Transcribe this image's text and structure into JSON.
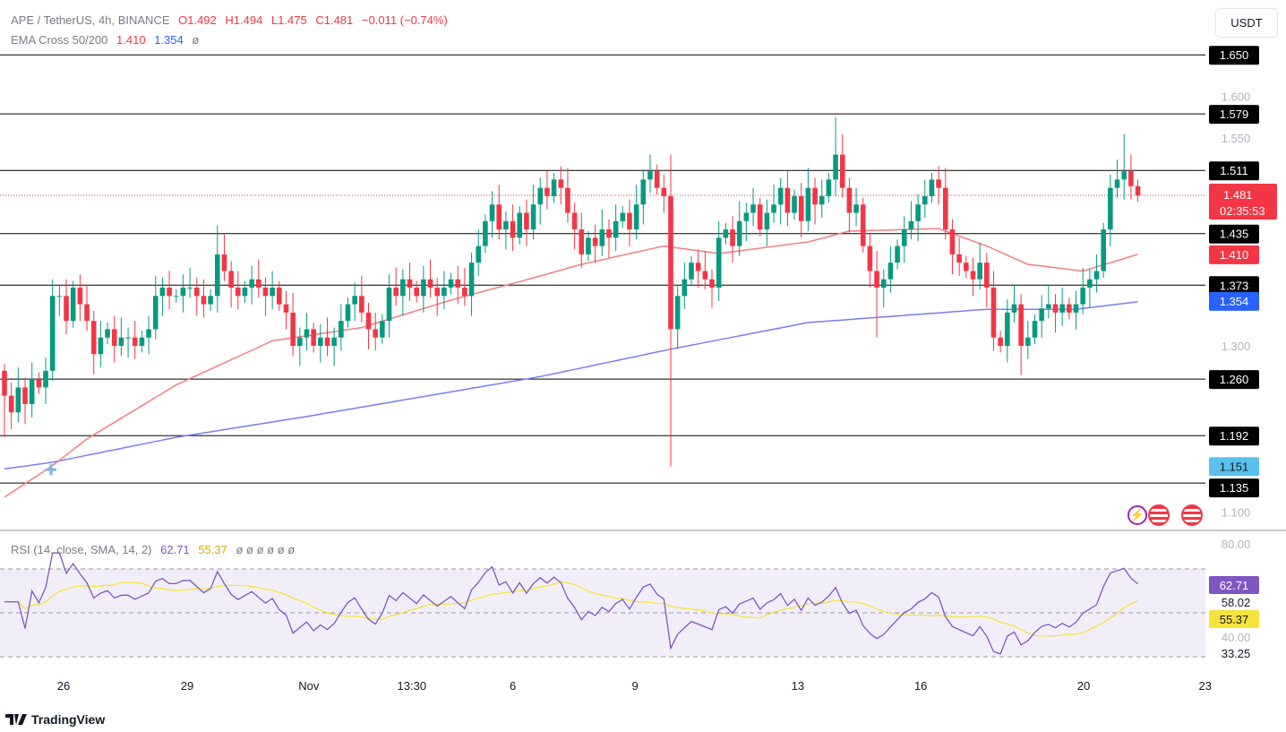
{
  "header": {
    "symbol": "APE / TetherUS, 4h, BINANCE",
    "open": "O1.492",
    "high": "H1.494",
    "low": "L1.475",
    "close": "C1.481",
    "change": "−0.011 (−0.74%)",
    "ema_label": "EMA Cross 50/200",
    "ema50": "1.410",
    "ema200": "1.354",
    "ema_extra": "ø"
  },
  "currency_button": "USDT",
  "rsi_legend": {
    "label": "RSI (14, close, SMA, 14, 2)",
    "rsi": "62.71",
    "sma": "55.37",
    "extras": "ø ø ø ø ø ø"
  },
  "brand": "TradingView",
  "colors": {
    "up": "#089981",
    "down": "#f23645",
    "ema50": "#f77c80",
    "ema200": "#7b7cf5",
    "rsi": "#7e57c2",
    "rsi_sma": "#f5e33c"
  },
  "chart_data": {
    "type": "candlestick",
    "title": "APE / TetherUS, 4h, BINANCE",
    "closes": [
      1.24,
      1.22,
      1.25,
      1.23,
      1.26,
      1.25,
      1.27,
      1.36,
      1.36,
      1.33,
      1.37,
      1.35,
      1.33,
      1.29,
      1.31,
      1.32,
      1.3,
      1.31,
      1.31,
      1.3,
      1.31,
      1.32,
      1.36,
      1.37,
      1.36,
      1.36,
      1.37,
      1.37,
      1.36,
      1.35,
      1.36,
      1.41,
      1.39,
      1.37,
      1.36,
      1.37,
      1.38,
      1.37,
      1.36,
      1.37,
      1.35,
      1.34,
      1.3,
      1.31,
      1.32,
      1.3,
      1.31,
      1.3,
      1.31,
      1.33,
      1.35,
      1.36,
      1.34,
      1.32,
      1.31,
      1.33,
      1.37,
      1.36,
      1.38,
      1.37,
      1.36,
      1.38,
      1.37,
      1.36,
      1.37,
      1.38,
      1.37,
      1.36,
      1.4,
      1.42,
      1.45,
      1.47,
      1.44,
      1.45,
      1.43,
      1.46,
      1.44,
      1.47,
      1.49,
      1.48,
      1.5,
      1.49,
      1.46,
      1.44,
      1.41,
      1.43,
      1.42,
      1.44,
      1.43,
      1.45,
      1.46,
      1.44,
      1.47,
      1.5,
      1.51,
      1.49,
      1.48,
      1.32,
      1.36,
      1.38,
      1.4,
      1.39,
      1.38,
      1.37,
      1.43,
      1.44,
      1.42,
      1.45,
      1.46,
      1.47,
      1.44,
      1.46,
      1.47,
      1.49,
      1.46,
      1.48,
      1.45,
      1.49,
      1.47,
      1.48,
      1.5,
      1.53,
      1.49,
      1.46,
      1.47,
      1.42,
      1.39,
      1.37,
      1.38,
      1.4,
      1.42,
      1.44,
      1.45,
      1.47,
      1.48,
      1.5,
      1.49,
      1.44,
      1.41,
      1.4,
      1.39,
      1.38,
      1.4,
      1.37,
      1.31,
      1.3,
      1.34,
      1.35,
      1.3,
      1.31,
      1.33,
      1.345,
      1.35,
      1.34,
      1.35,
      1.34,
      1.35,
      1.37,
      1.38,
      1.39,
      1.44,
      1.49,
      1.5,
      1.51,
      1.492,
      1.481
    ],
    "first_open": 1.27,
    "wick_extremes": [
      {
        "i": 0,
        "low": 1.19
      },
      {
        "i": 7,
        "high": 1.38
      },
      {
        "i": 31,
        "high": 1.445
      },
      {
        "i": 97,
        "low": 1.155,
        "high": 1.53
      },
      {
        "i": 121,
        "high": 1.575
      },
      {
        "i": 127,
        "low": 1.31
      },
      {
        "i": 148,
        "low": 1.265
      },
      {
        "i": 163,
        "high": 1.555
      }
    ],
    "ema50": [
      [
        0,
        1.118
      ],
      [
        7,
        1.156
      ],
      [
        12,
        1.188
      ],
      [
        25,
        1.253
      ],
      [
        39,
        1.306
      ],
      [
        52,
        1.322
      ],
      [
        65,
        1.355
      ],
      [
        78,
        1.384
      ],
      [
        84,
        1.398
      ],
      [
        96,
        1.42
      ],
      [
        104,
        1.411
      ],
      [
        117,
        1.425
      ],
      [
        123,
        1.438
      ],
      [
        136,
        1.441
      ],
      [
        143,
        1.42
      ],
      [
        149,
        1.398
      ],
      [
        157,
        1.39
      ],
      [
        165,
        1.41
      ]
    ],
    "ema200": [
      [
        0,
        1.152
      ],
      [
        7,
        1.16
      ],
      [
        25,
        1.19
      ],
      [
        44,
        1.215
      ],
      [
        78,
        1.263
      ],
      [
        97,
        1.296
      ],
      [
        117,
        1.328
      ],
      [
        143,
        1.344
      ],
      [
        156,
        1.344
      ],
      [
        165,
        1.353
      ]
    ],
    "levels": [
      "1.650",
      "1.579",
      "1.511",
      "1.435",
      "1.373",
      "1.260",
      "1.192",
      "1.135"
    ],
    "price_ticks": [
      "1.600",
      "1.550",
      "1.300",
      "1.100"
    ],
    "current_price": "1.481",
    "countdown": "02:35:53",
    "ema50_last": "1.410",
    "ema200_last": "1.354",
    "cross_marker": "1.151",
    "ylim": [
      1.08,
      1.66
    ],
    "rsi": {
      "period": 14,
      "sma": 14,
      "last": "62.71",
      "sma_last": "55.37",
      "upper": 70,
      "middle": 50,
      "lower": 30,
      "ticks": [
        "80.00",
        "58.02",
        "40.00",
        "33.25"
      ]
    },
    "x_ticks": [
      {
        "label": "26",
        "i": 8.6
      },
      {
        "label": "29",
        "i": 26.6
      },
      {
        "label": "Nov",
        "i": 44.3
      },
      {
        "label": "13:30",
        "i": 59.3
      },
      {
        "label": "6",
        "i": 74
      },
      {
        "label": "9",
        "i": 91.8
      },
      {
        "label": "13",
        "i": 115.5
      },
      {
        "label": "16",
        "i": 133.4
      },
      {
        "label": "20",
        "i": 157.1
      },
      {
        "label": "23",
        "i": 174.8
      }
    ]
  }
}
